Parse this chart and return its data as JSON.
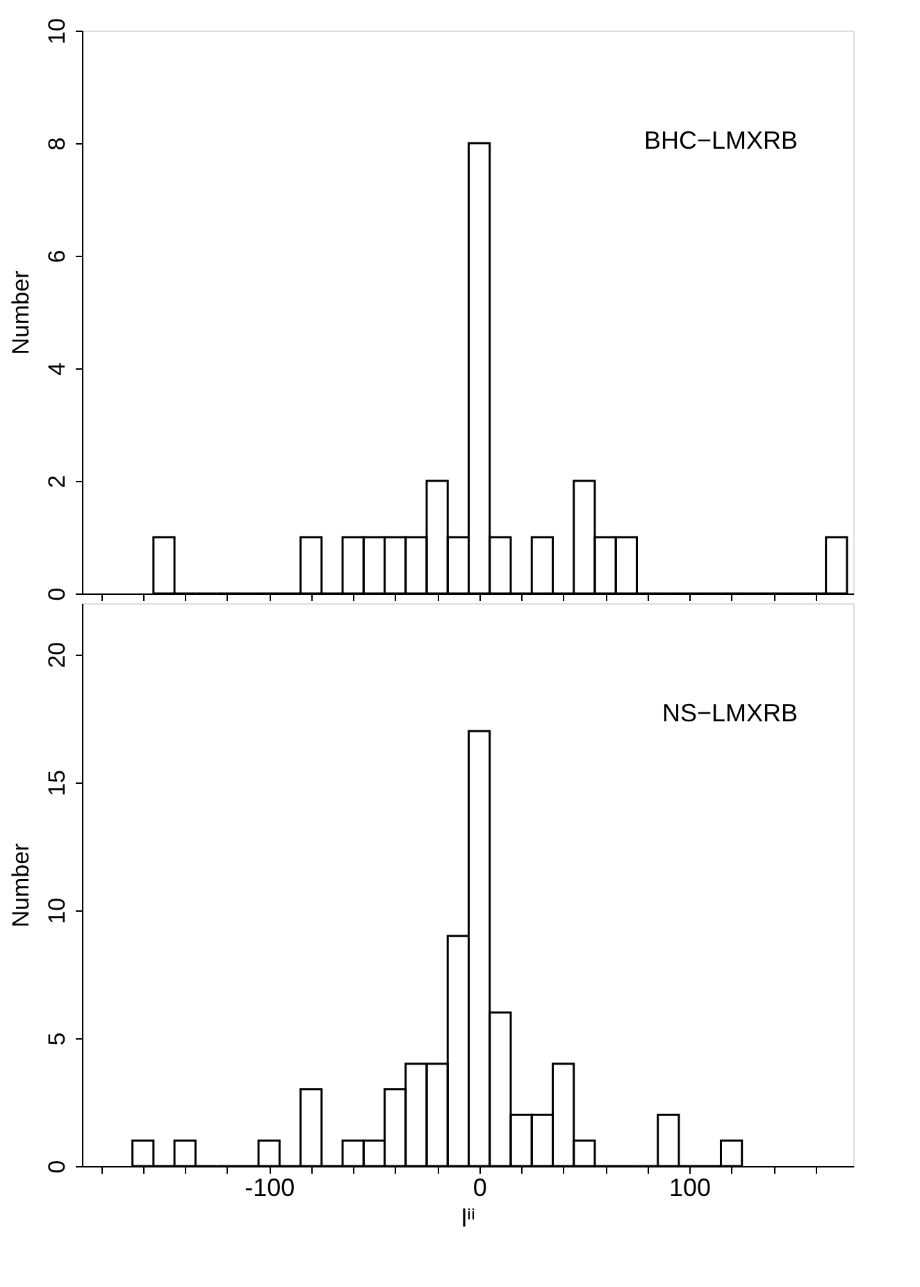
{
  "chart_data": [
    {
      "type": "histogram",
      "ylabel": "Number",
      "color": "#000000",
      "annotations": [
        "BHC−LMXRB"
      ],
      "tick_labels": "y",
      "grid": false,
      "bins": [
        -155,
        -145,
        -135,
        -125,
        -115,
        -105,
        -95,
        -85,
        -75,
        -65,
        -55,
        -45,
        -35,
        -25,
        -15,
        -5,
        5,
        15,
        25,
        35,
        45,
        55,
        65,
        75,
        85,
        95,
        105,
        115,
        125,
        135,
        145,
        155,
        165,
        175
      ],
      "values": [
        1,
        0,
        0,
        0,
        0,
        0,
        0,
        1,
        0,
        1,
        1,
        1,
        1,
        2,
        1,
        8,
        1,
        0,
        1,
        0,
        2,
        1,
        1,
        0,
        0,
        0,
        0,
        0,
        0,
        0,
        0,
        0,
        1
      ],
      "xlim": [
        -189,
        178
      ],
      "xticks": [
        {
          "value": -180,
          "label": null
        },
        {
          "value": -160,
          "label": null
        },
        {
          "value": -140,
          "label": null
        },
        {
          "value": -120,
          "label": null
        },
        {
          "value": -100,
          "label": null
        },
        {
          "value": -80,
          "label": null
        },
        {
          "value": -60,
          "label": null
        },
        {
          "value": -40,
          "label": null
        },
        {
          "value": -20,
          "label": null
        },
        {
          "value": 0,
          "label": null
        },
        {
          "value": 20,
          "label": null
        },
        {
          "value": 40,
          "label": null
        },
        {
          "value": 60,
          "label": null
        },
        {
          "value": 80,
          "label": null
        },
        {
          "value": 100,
          "label": null
        },
        {
          "value": 120,
          "label": null
        },
        {
          "value": 140,
          "label": null
        },
        {
          "value": 160,
          "label": null
        }
      ],
      "ylim": [
        0,
        10
      ],
      "yticks": [
        0,
        2,
        4,
        6,
        8,
        10
      ]
    },
    {
      "type": "histogram",
      "xlabel": "lⁱⁱ",
      "ylabel": "Number",
      "color": "#000000",
      "annotations": [
        "NS−LMXRB"
      ],
      "grid": false,
      "bins": [
        -165,
        -155,
        -145,
        -135,
        -125,
        -115,
        -105,
        -95,
        -85,
        -75,
        -65,
        -55,
        -45,
        -35,
        -25,
        -15,
        -5,
        5,
        15,
        25,
        35,
        45,
        55,
        65,
        75,
        85,
        95,
        105,
        115,
        125
      ],
      "values": [
        1,
        0,
        1,
        0,
        0,
        0,
        1,
        0,
        3,
        0,
        1,
        1,
        3,
        4,
        4,
        9,
        17,
        6,
        2,
        2,
        4,
        1,
        0,
        0,
        0,
        2,
        0,
        0,
        1
      ],
      "xlim": [
        -189,
        178
      ],
      "xticks": [
        {
          "value": -180,
          "label": null
        },
        {
          "value": -160,
          "label": null
        },
        {
          "value": -140,
          "label": null
        },
        {
          "value": -120,
          "label": null
        },
        -100,
        {
          "value": -80,
          "label": null
        },
        {
          "value": -60,
          "label": null
        },
        {
          "value": -40,
          "label": null
        },
        {
          "value": -20,
          "label": null
        },
        0,
        {
          "value": 20,
          "label": null
        },
        {
          "value": 40,
          "label": null
        },
        {
          "value": 60,
          "label": null
        },
        {
          "value": 80,
          "label": null
        },
        100,
        {
          "value": 120,
          "label": null
        },
        {
          "value": 140,
          "label": null
        },
        {
          "value": 160,
          "label": null
        }
      ],
      "ylim": [
        0,
        22
      ],
      "yticks": [
        0,
        5,
        10,
        15,
        20
      ]
    }
  ]
}
